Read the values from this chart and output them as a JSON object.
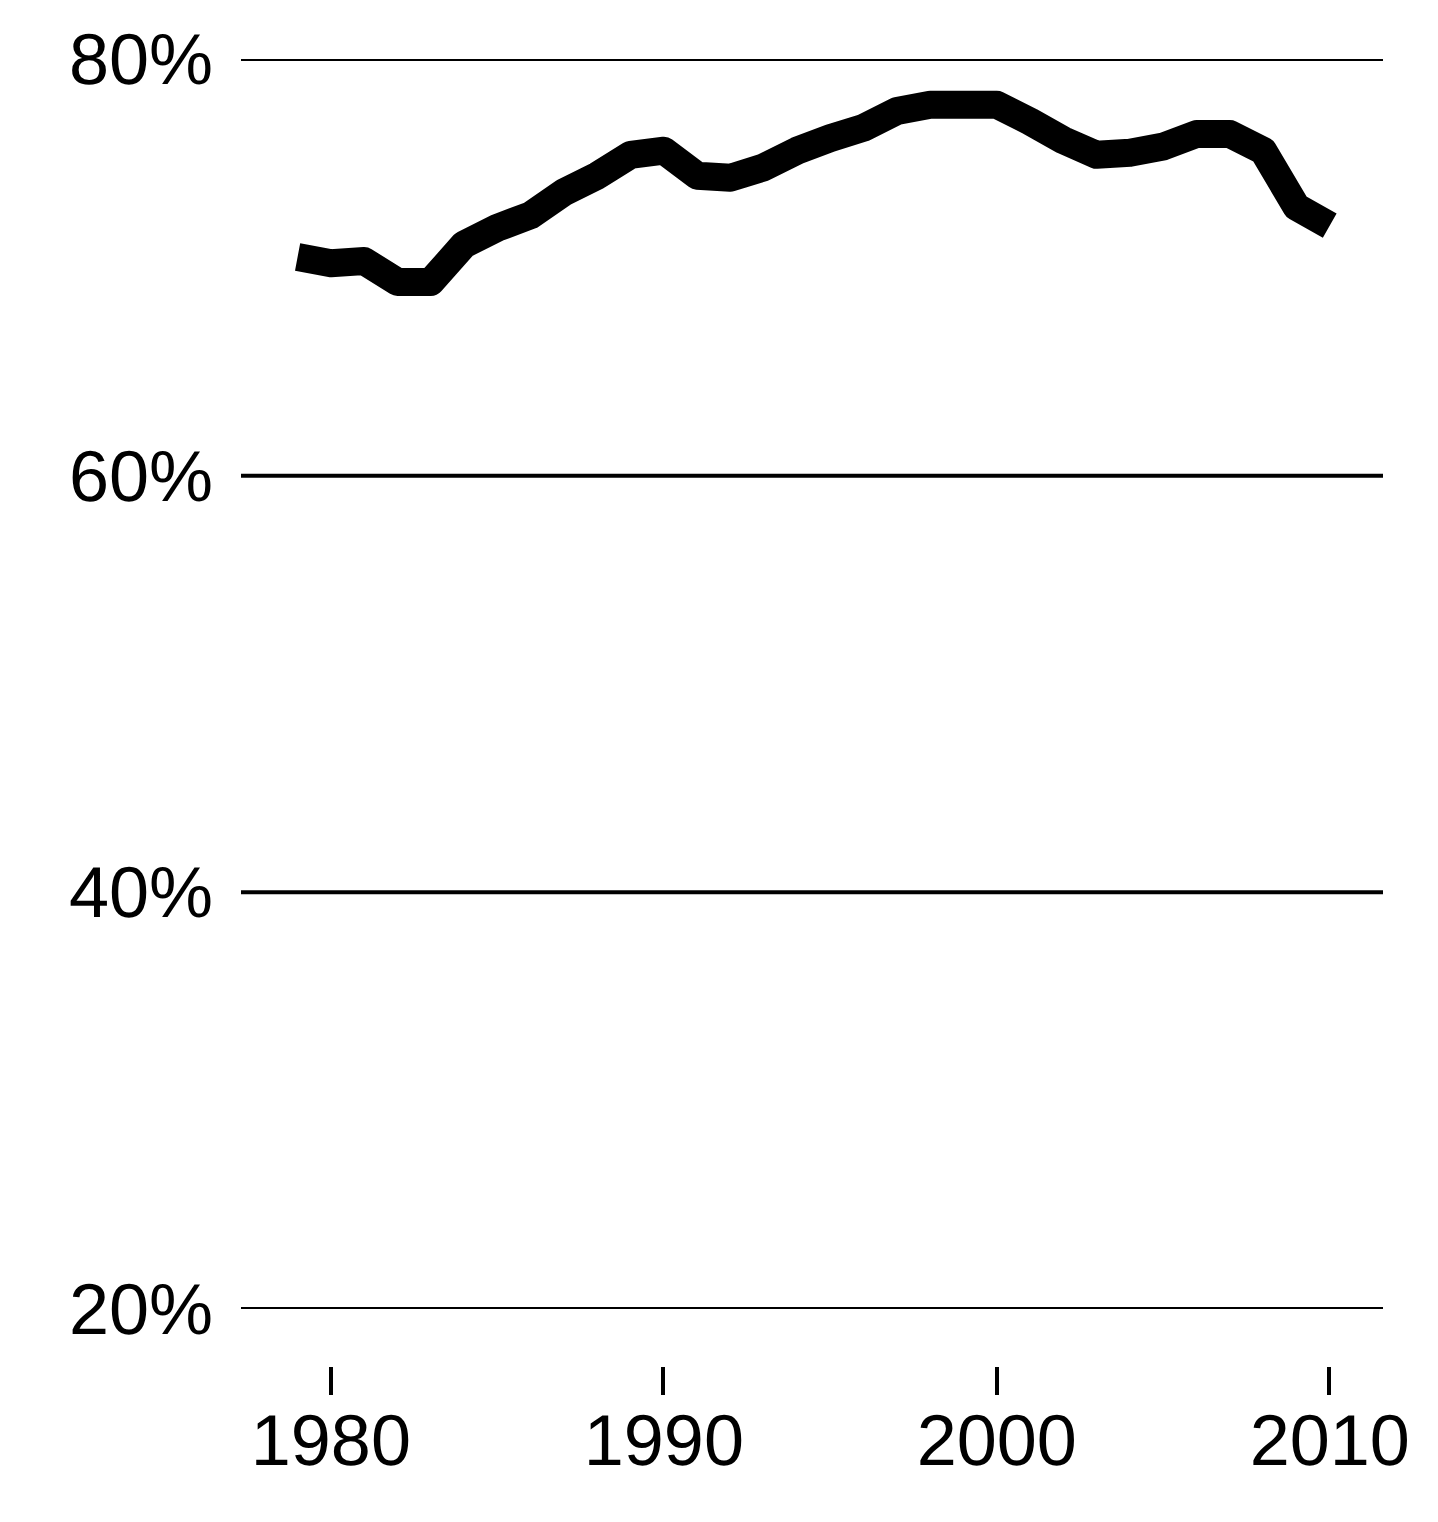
{
  "chart_data": {
    "type": "line",
    "x": [
      1979,
      1980,
      1981,
      1982,
      1983,
      1984,
      1985,
      1986,
      1987,
      1988,
      1989,
      1990,
      1991,
      1992,
      1993,
      1994,
      1995,
      1996,
      1997,
      1998,
      1999,
      2000,
      2001,
      2002,
      2003,
      2004,
      2005,
      2006,
      2007,
      2008,
      2009,
      2010
    ],
    "series": [
      {
        "color": "#000000",
        "values": [
          70.5,
          70.2,
          70.3,
          69.3,
          69.3,
          71.1,
          71.9,
          72.5,
          73.6,
          74.4,
          75.4,
          75.6,
          74.4,
          74.3,
          74.8,
          75.6,
          76.2,
          76.7,
          77.5,
          77.8,
          77.8,
          77.8,
          77.0,
          76.1,
          75.4,
          75.5,
          75.8,
          76.4,
          76.4,
          75.6,
          72.9,
          72.0
        ]
      }
    ],
    "xlim": [
      1977.3,
      2011.6
    ],
    "ylim": [
      20,
      80
    ],
    "xticks": [
      1980,
      1990,
      2000,
      2010
    ],
    "yticks": [
      {
        "value": 20,
        "label": "20%"
      },
      {
        "value": 40,
        "label": "40%"
      },
      {
        "value": 60,
        "label": "60%"
      },
      {
        "value": 80,
        "label": "80%"
      }
    ],
    "grid": "y",
    "marker": "none",
    "line_style": "solid"
  }
}
